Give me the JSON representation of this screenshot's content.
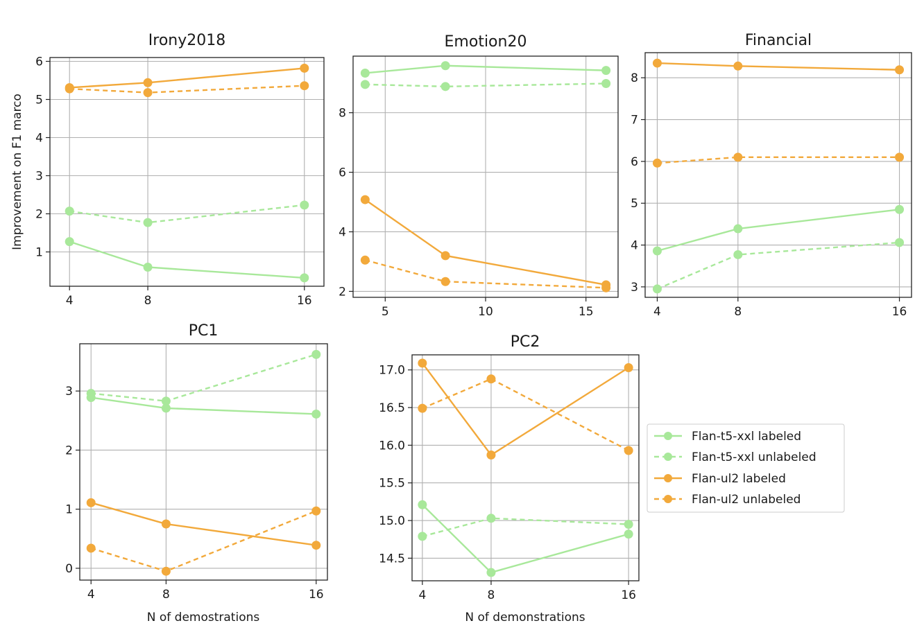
{
  "colors": {
    "flan_t5": "#a8e89a",
    "flan_ul2": "#f2a93b",
    "grid": "#b0b0b0",
    "axis": "#222222"
  },
  "figure_labels": {
    "ylabel": "Improvement on F1 marco",
    "xlabel_pc1": "N of demostrations",
    "xlabel_pc2": "N of demonstrations"
  },
  "legend": {
    "entries": [
      {
        "label": "Flan-t5-xxl labeled",
        "color": "#a8e89a",
        "dash": "solid"
      },
      {
        "label": "Flan-t5-xxl unlabeled",
        "color": "#a8e89a",
        "dash": "dashed"
      },
      {
        "label": "Flan-ul2 labeled",
        "color": "#f2a93b",
        "dash": "solid"
      },
      {
        "label": "Flan-ul2 unlabeled",
        "color": "#f2a93b",
        "dash": "dashed"
      }
    ]
  },
  "chart_data": [
    {
      "type": "line",
      "title": "Irony2018",
      "ylabel": "Improvement on F1 marco",
      "xlabel": "",
      "x": [
        4,
        8,
        16
      ],
      "xticks": [
        4,
        8,
        16
      ],
      "xlim": [
        3,
        17
      ],
      "yticks": [
        1,
        2,
        3,
        4,
        5,
        6
      ],
      "ylim": [
        0.1,
        6.1
      ],
      "grid": true,
      "series": [
        {
          "name": "Flan-t5-xxl labeled",
          "values": [
            1.27,
            0.6,
            0.32
          ]
        },
        {
          "name": "Flan-t5-xxl unlabeled",
          "values": [
            2.07,
            1.77,
            2.23
          ]
        },
        {
          "name": "Flan-ul2 labeled",
          "values": [
            5.31,
            5.44,
            5.82
          ]
        },
        {
          "name": "Flan-ul2 unlabeled",
          "values": [
            5.28,
            5.18,
            5.36
          ]
        }
      ]
    },
    {
      "type": "line",
      "title": "Emotion20",
      "xlabel": "",
      "x": [
        4,
        8,
        16
      ],
      "xticks": [
        5,
        10,
        15
      ],
      "xlim": [
        3.4,
        16.6
      ],
      "yticks": [
        2,
        4,
        6,
        8
      ],
      "ylim": [
        1.8,
        9.9
      ],
      "grid": true,
      "series": [
        {
          "name": "Flan-t5-xxl labeled",
          "values": [
            9.33,
            9.58,
            9.42
          ]
        },
        {
          "name": "Flan-t5-xxl unlabeled",
          "values": [
            8.95,
            8.88,
            8.98
          ]
        },
        {
          "name": "Flan-ul2 labeled",
          "values": [
            5.08,
            3.2,
            2.22
          ]
        },
        {
          "name": "Flan-ul2 unlabeled",
          "values": [
            3.05,
            2.33,
            2.12
          ]
        }
      ]
    },
    {
      "type": "line",
      "title": "Financial",
      "xlabel": "",
      "x": [
        4,
        8,
        16
      ],
      "xticks": [
        4,
        8,
        16
      ],
      "xlim": [
        3.4,
        16.6
      ],
      "yticks": [
        3,
        4,
        5,
        6,
        7,
        8
      ],
      "ylim": [
        2.75,
        8.6
      ],
      "grid": true,
      "series": [
        {
          "name": "Flan-t5-xxl labeled",
          "values": [
            3.86,
            4.39,
            4.85
          ]
        },
        {
          "name": "Flan-t5-xxl unlabeled",
          "values": [
            2.95,
            3.77,
            4.06
          ]
        },
        {
          "name": "Flan-ul2 labeled",
          "values": [
            8.35,
            8.28,
            8.19
          ]
        },
        {
          "name": "Flan-ul2 unlabeled",
          "values": [
            5.96,
            6.1,
            6.1
          ]
        }
      ]
    },
    {
      "type": "line",
      "title": "PC1",
      "xlabel": "N of demostrations",
      "x": [
        4,
        8,
        16
      ],
      "xticks": [
        4,
        8,
        16
      ],
      "xlim": [
        3.4,
        16.6
      ],
      "yticks": [
        0,
        1,
        2,
        3
      ],
      "ylim": [
        -0.2,
        3.8
      ],
      "grid": true,
      "series": [
        {
          "name": "Flan-t5-xxl labeled",
          "values": [
            2.89,
            2.71,
            2.61
          ]
        },
        {
          "name": "Flan-t5-xxl unlabeled",
          "values": [
            2.96,
            2.83,
            3.62
          ]
        },
        {
          "name": "Flan-ul2 labeled",
          "values": [
            1.11,
            0.75,
            0.39
          ]
        },
        {
          "name": "Flan-ul2 unlabeled",
          "values": [
            0.34,
            -0.05,
            0.97
          ]
        }
      ]
    },
    {
      "type": "line",
      "title": "PC2",
      "xlabel": "N of demonstrations",
      "x": [
        4,
        8,
        16
      ],
      "xticks": [
        4,
        8,
        16
      ],
      "xlim": [
        3.4,
        16.6
      ],
      "yticks": [
        14.5,
        15.0,
        15.5,
        16.0,
        16.5,
        17.0
      ],
      "ytick_labels": [
        "14.5",
        "15.0",
        "15.5",
        "16.0",
        "16.5",
        "17.0"
      ],
      "ylim": [
        14.2,
        17.2
      ],
      "grid": true,
      "series": [
        {
          "name": "Flan-t5-xxl labeled",
          "values": [
            15.21,
            14.31,
            14.82
          ]
        },
        {
          "name": "Flan-t5-xxl unlabeled",
          "values": [
            14.79,
            15.03,
            14.95
          ]
        },
        {
          "name": "Flan-ul2 labeled",
          "values": [
            17.09,
            15.87,
            17.03
          ]
        },
        {
          "name": "Flan-ul2 unlabeled",
          "values": [
            16.49,
            16.88,
            15.93
          ]
        }
      ]
    }
  ]
}
